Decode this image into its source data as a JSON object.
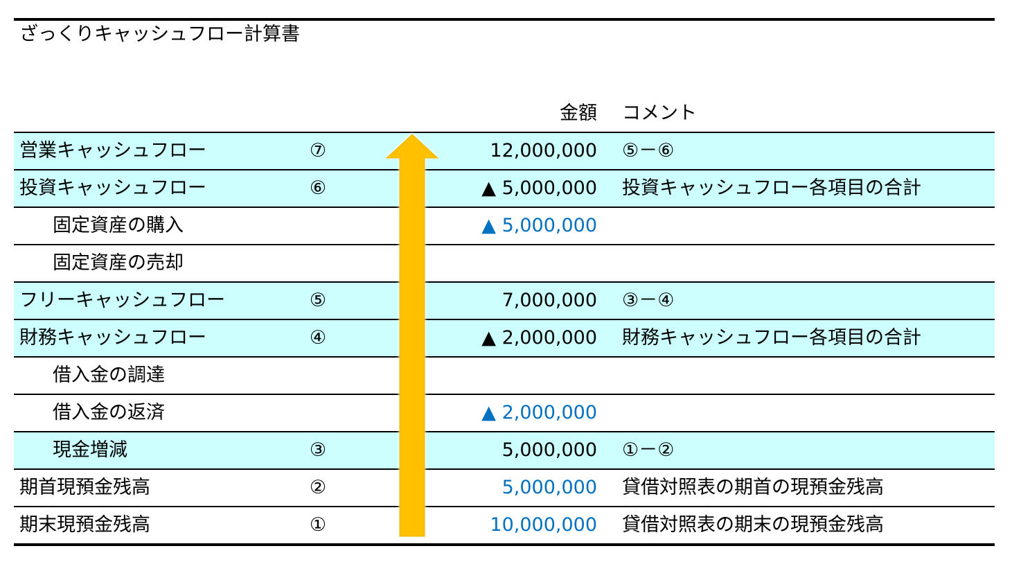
{
  "title": "ざっくりキャッシュフロー計算書",
  "columns": {
    "amount": "金額",
    "comment": "コメント"
  },
  "rows": [
    {
      "label": "営業キャッシュフロー",
      "ref": "⑦",
      "amount": "12,000,000",
      "comment": "⑤－⑥"
    },
    {
      "label": "投資キャッシュフロー",
      "ref": "⑥",
      "amount": "▲ 5,000,000",
      "comment": "投資キャッシュフロー各項目の合計"
    },
    {
      "label": "固定資産の購入",
      "ref": "",
      "amount": "▲ 5,000,000",
      "comment": ""
    },
    {
      "label": "固定資産の売却",
      "ref": "",
      "amount": "",
      "comment": ""
    },
    {
      "label": "フリーキャッシュフロー",
      "ref": "⑤",
      "amount": "7,000,000",
      "comment": "③－④"
    },
    {
      "label": "財務キャッシュフロー",
      "ref": "④",
      "amount": "▲ 2,000,000",
      "comment": "財務キャッシュフロー各項目の合計"
    },
    {
      "label": "借入金の調達",
      "ref": "",
      "amount": "",
      "comment": ""
    },
    {
      "label": "借入金の返済",
      "ref": "",
      "amount": "▲ 2,000,000",
      "comment": ""
    },
    {
      "label": "現金増減",
      "ref": "③",
      "amount": "5,000,000",
      "comment": "①－②"
    },
    {
      "label": "期首現預金残高",
      "ref": "②",
      "amount": "5,000,000",
      "comment": "貸借対照表の期首の現預金残高"
    },
    {
      "label": "期末現預金残高",
      "ref": "①",
      "amount": "10,000,000",
      "comment": "貸借対照表の期末の現預金残高"
    }
  ],
  "colors": {
    "highlight": "#ccffff",
    "input_value": "#0070c0",
    "arrow_fill": "#ffc000"
  },
  "icons": {
    "arrow": "up-arrow-icon"
  }
}
